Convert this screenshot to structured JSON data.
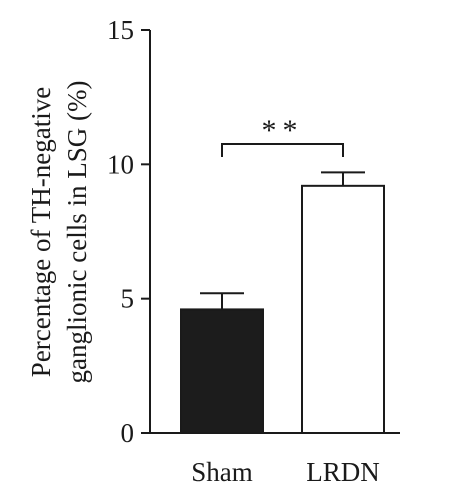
{
  "chart_data": {
    "type": "bar",
    "title": "",
    "xlabel": "",
    "ylabel_lines": [
      "Percentage of TH-negative",
      "ganglionic cells in LSG (%)"
    ],
    "categories": [
      "Sham",
      "LRDN"
    ],
    "values": [
      4.6,
      9.2
    ],
    "error": [
      0.6,
      0.5
    ],
    "ylim": [
      0,
      15
    ],
    "yticks": [
      "0",
      "5",
      "10",
      "15"
    ],
    "bar_fills": [
      "#1c1c1c",
      "#ffffff"
    ],
    "significance": {
      "between": [
        "Sham",
        "LRDN"
      ],
      "label": "**"
    },
    "grid": false
  }
}
